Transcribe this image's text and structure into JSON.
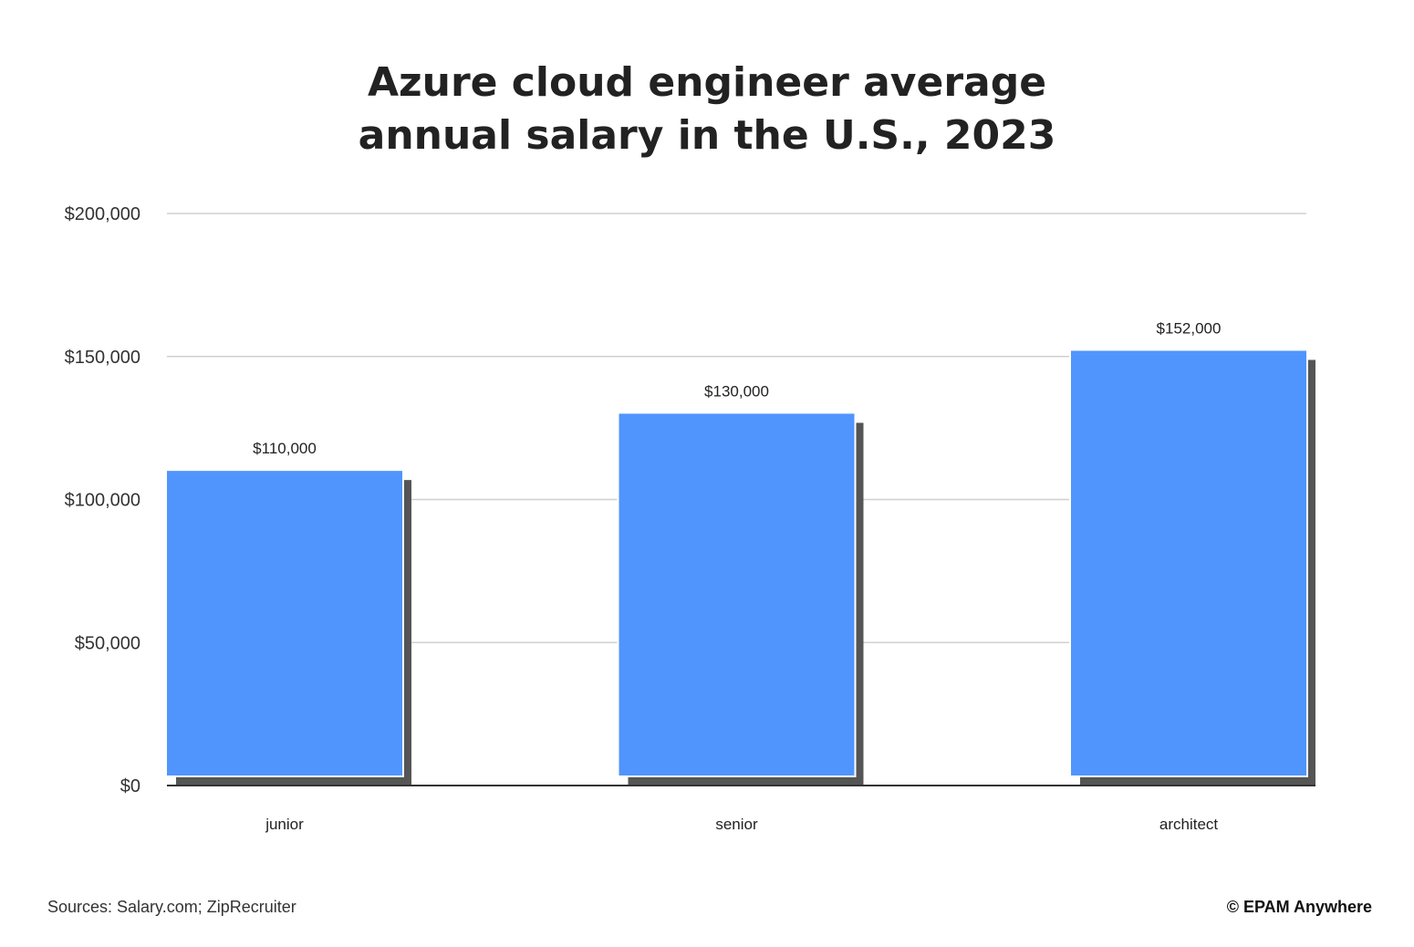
{
  "footer": {
    "source": "Sources: Salary.com; ZipRecruiter",
    "brand": "© EPAM Anywhere"
  },
  "colors": {
    "bar": "#5095fd",
    "grid": "#d0d0d0",
    "axis": "#333333",
    "text": "#222222"
  },
  "chart_data": {
    "type": "bar",
    "title_lines": [
      "Azure cloud engineer average",
      "annual salary in the U.S., 2023"
    ],
    "categories": [
      "junior",
      "senior",
      "architect"
    ],
    "values": [
      110000,
      130000,
      152000
    ],
    "data_labels": [
      "$110,000",
      "$130,000",
      "$152,000"
    ],
    "xlabel": "",
    "ylabel": "",
    "ylim": [
      0,
      200000
    ],
    "yticks": [
      0,
      50000,
      100000,
      150000,
      200000
    ],
    "ytick_labels": [
      "$0",
      "$50,000",
      "$100,000",
      "$150,000",
      "$200,000"
    ],
    "grid": true,
    "legend": "none"
  }
}
